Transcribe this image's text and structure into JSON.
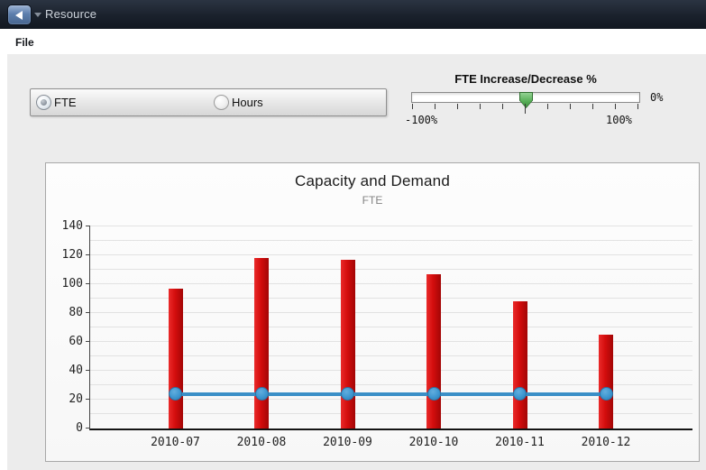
{
  "app": {
    "titlebar": {
      "title": "Resource"
    },
    "menubar": {
      "file_label": "File"
    }
  },
  "controls": {
    "unit_toggle": {
      "options": [
        {
          "label": "FTE",
          "selected": true
        },
        {
          "label": "Hours",
          "selected": false
        }
      ]
    },
    "fte_slider": {
      "title": "FTE Increase/Decrease %",
      "min_label": "-100%",
      "max_label": "100%",
      "current_value_label": "0%",
      "value_percent": 0,
      "tick_count": 11
    }
  },
  "chart_data": {
    "type": "bar",
    "title": "Capacity and Demand",
    "subtitle": "FTE",
    "categories": [
      "2010-07",
      "2010-08",
      "2010-09",
      "2010-10",
      "2010-11",
      "2010-12"
    ],
    "series": [
      {
        "name": "bar-series",
        "type": "bar",
        "color": "#d40d0d",
        "values": [
          97,
          118,
          117,
          107,
          88,
          65
        ]
      },
      {
        "name": "line-series",
        "type": "line",
        "color": "#3a8fc7",
        "marker_color": "#3d96d0",
        "values": [
          24,
          24,
          24,
          24,
          24,
          24
        ]
      }
    ],
    "ylim": [
      0,
      140
    ],
    "ytick_step": 20,
    "minor_grid_step": 10,
    "grid": true,
    "legend": "none"
  },
  "colors": {
    "titlebar_bg": "#1a212c",
    "back_button_blue": "#5c7ead",
    "content_bg": "#ececec",
    "bar_red": "#d40d0d",
    "line_blue": "#3a8fc7",
    "slider_thumb_green": "#55ad55"
  }
}
